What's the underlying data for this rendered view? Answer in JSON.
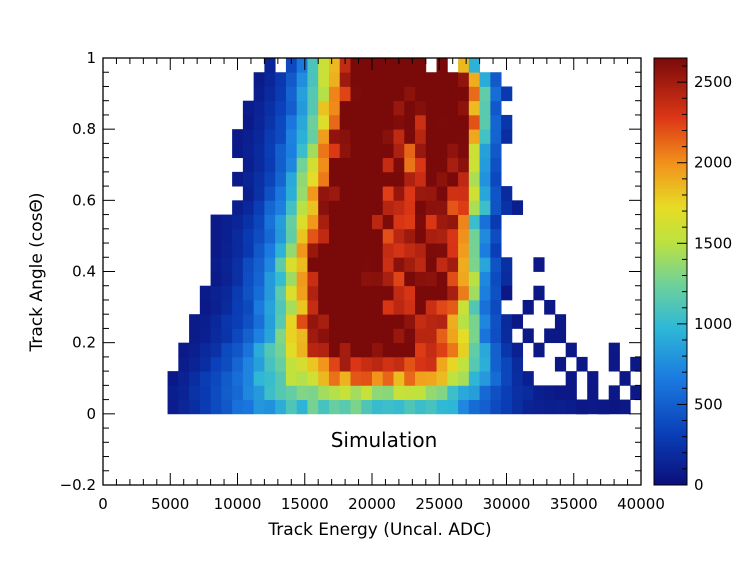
{
  "chart_data": {
    "type": "heatmap",
    "xlabel": "Track Energy (Uncal. ADC)",
    "ylabel": "Track Angle (cosΘ)",
    "annotation": "Simulation",
    "xlim": [
      0,
      40000
    ],
    "ylim": [
      -0.2,
      1
    ],
    "x_ticks": [
      0,
      5000,
      10000,
      15000,
      20000,
      25000,
      30000,
      35000,
      40000
    ],
    "x_tick_labels": [
      "0",
      "5000",
      "10000",
      "15000",
      "20000",
      "25000",
      "30000",
      "35000",
      "40000"
    ],
    "y_ticks": [
      -0.2,
      0,
      0.2,
      0.4,
      0.6,
      0.8,
      1
    ],
    "y_tick_labels": [
      "−0.2",
      "0",
      "0.2",
      "0.4",
      "0.6",
      "0.8",
      "1"
    ],
    "colorbar": {
      "range": [
        0,
        2650
      ],
      "ticks": [
        0,
        500,
        1000,
        1500,
        2000,
        2500
      ],
      "tick_labels": [
        "0",
        "500",
        "1000",
        "1500",
        "2000",
        "2500"
      ],
      "colormap": "turbo-like (dark blue → cyan → yellow → red → dark red)"
    },
    "bins": {
      "x_bin_width": 800,
      "y_bin_width": 0.04,
      "y_from": 0,
      "y_to": 1
    },
    "rows": [
      {
        "y_low": 0.0,
        "x_min": 4800,
        "x_max": 38000,
        "ridges": [
          [
            14000,
            650,
            4200
          ],
          [
            19000,
            650,
            3800
          ],
          [
            25000,
            700,
            3000
          ]
        ]
      },
      {
        "y_low": 0.04,
        "x_min": 4800,
        "x_max": 34000,
        "ridges": [
          [
            14500,
            800,
            4200
          ],
          [
            19200,
            850,
            3800
          ],
          [
            25000,
            900,
            3000
          ]
        ]
      },
      {
        "y_low": 0.08,
        "x_min": 5200,
        "x_max": 32000,
        "ridges": [
          [
            15000,
            1000,
            4000
          ],
          [
            19300,
            1100,
            3600
          ],
          [
            25000,
            1300,
            3000
          ]
        ]
      },
      {
        "y_low": 0.12,
        "x_min": 5600,
        "x_max": 31000,
        "ridges": [
          [
            15500,
            1150,
            3800
          ],
          [
            19300,
            1300,
            3400
          ],
          [
            24800,
            1700,
            2900
          ]
        ]
      },
      {
        "y_low": 0.16,
        "x_min": 6000,
        "x_max": 30500,
        "ridges": [
          [
            16000,
            1300,
            3700
          ],
          [
            19000,
            1450,
            3200
          ],
          [
            24600,
            1900,
            2800
          ]
        ]
      },
      {
        "y_low": 0.2,
        "x_min": 6400,
        "x_max": 30000,
        "ridges": [
          [
            16500,
            1400,
            3600
          ],
          [
            18800,
            1550,
            3000
          ],
          [
            24500,
            2050,
            2700
          ]
        ]
      },
      {
        "y_low": 0.24,
        "x_min": 6400,
        "x_max": 30000,
        "ridges": [
          [
            16800,
            1450,
            3500
          ],
          [
            18600,
            1600,
            2900
          ],
          [
            24600,
            2150,
            2600
          ]
        ]
      },
      {
        "y_low": 0.28,
        "x_min": 7200,
        "x_max": 29500,
        "ridges": [
          [
            17000,
            1500,
            3400
          ],
          [
            18500,
            1600,
            2800
          ],
          [
            24800,
            2250,
            2500
          ]
        ]
      },
      {
        "y_low": 0.32,
        "x_min": 7200,
        "x_max": 29500,
        "ridges": [
          [
            17100,
            1500,
            3400
          ],
          [
            18400,
            1600,
            2800
          ],
          [
            25000,
            2350,
            2500
          ]
        ]
      },
      {
        "y_low": 0.36,
        "x_min": 8000,
        "x_max": 30000,
        "ridges": [
          [
            17200,
            1550,
            3300
          ],
          [
            18300,
            1550,
            2800
          ],
          [
            25000,
            2400,
            2400
          ]
        ]
      },
      {
        "y_low": 0.4,
        "x_min": 8000,
        "x_max": 30000,
        "ridges": [
          [
            17300,
            1600,
            3300
          ],
          [
            18300,
            1550,
            2800
          ],
          [
            25000,
            2400,
            2400
          ]
        ]
      },
      {
        "y_low": 0.44,
        "x_min": 8000,
        "x_max": 29500,
        "ridges": [
          [
            17500,
            1600,
            3200
          ],
          [
            18400,
            1500,
            2800
          ],
          [
            25100,
            2350,
            2300
          ]
        ]
      },
      {
        "y_low": 0.48,
        "x_min": 8000,
        "x_max": 29500,
        "ridges": [
          [
            17700,
            1600,
            3200
          ],
          [
            18600,
            1450,
            2800
          ],
          [
            25200,
            2300,
            2300
          ]
        ]
      },
      {
        "y_low": 0.52,
        "x_min": 8000,
        "x_max": 29000,
        "ridges": [
          [
            17800,
            1650,
            3100
          ],
          [
            18800,
            1450,
            2800
          ],
          [
            25300,
            2300,
            2200
          ]
        ]
      },
      {
        "y_low": 0.56,
        "x_min": 9600,
        "x_max": 30500,
        "ridges": [
          [
            18000,
            1650,
            3100
          ],
          [
            19000,
            1450,
            2800
          ],
          [
            25400,
            2350,
            2200
          ]
        ]
      },
      {
        "y_low": 0.6,
        "x_min": 10400,
        "x_max": 30000,
        "ridges": [
          [
            18200,
            1700,
            3000
          ],
          [
            19200,
            1450,
            2800
          ],
          [
            25500,
            2400,
            2100
          ]
        ]
      },
      {
        "y_low": 0.64,
        "x_min": 9600,
        "x_max": 29500,
        "ridges": [
          [
            18400,
            1700,
            3000
          ],
          [
            19400,
            1450,
            2700
          ],
          [
            25600,
            2450,
            2100
          ]
        ]
      },
      {
        "y_low": 0.68,
        "x_min": 10400,
        "x_max": 29500,
        "ridges": [
          [
            18600,
            1700,
            3000
          ],
          [
            19600,
            1450,
            2700
          ],
          [
            25700,
            2500,
            2000
          ]
        ]
      },
      {
        "y_low": 0.72,
        "x_min": 9600,
        "x_max": 29500,
        "ridges": [
          [
            18800,
            1700,
            3000
          ],
          [
            19800,
            1450,
            2700
          ],
          [
            25800,
            2550,
            2000
          ]
        ]
      },
      {
        "y_low": 0.76,
        "x_min": 9600,
        "x_max": 30000,
        "ridges": [
          [
            19000,
            1700,
            3000
          ],
          [
            20000,
            1450,
            2700
          ],
          [
            25900,
            2600,
            2000
          ]
        ]
      },
      {
        "y_low": 0.8,
        "x_min": 10400,
        "x_max": 30000,
        "ridges": [
          [
            19200,
            1700,
            3000
          ],
          [
            20200,
            1450,
            2700
          ],
          [
            26000,
            2600,
            2000
          ]
        ]
      },
      {
        "y_low": 0.84,
        "x_min": 10400,
        "x_max": 29500,
        "ridges": [
          [
            19300,
            1700,
            3000
          ],
          [
            20400,
            1450,
            2700
          ],
          [
            26000,
            2650,
            2000
          ]
        ]
      },
      {
        "y_low": 0.88,
        "x_min": 11200,
        "x_max": 30000,
        "ridges": [
          [
            19400,
            1700,
            3000
          ],
          [
            20600,
            1450,
            2700
          ],
          [
            26000,
            2650,
            2000
          ]
        ]
      },
      {
        "y_low": 0.92,
        "x_min": 11200,
        "x_max": 29500,
        "ridges": [
          [
            19500,
            1750,
            3000
          ],
          [
            21000,
            1450,
            2700
          ],
          [
            25800,
            2600,
            2000
          ]
        ]
      },
      {
        "y_low": 0.96,
        "x_min": 12000,
        "x_max": 28000,
        "ridges": [
          [
            19600,
            2000,
            3000
          ],
          [
            21500,
            1700,
            2700
          ],
          [
            25500,
            2400,
            2000
          ]
        ]
      }
    ],
    "sparse_bins": [
      [
        29600,
        0.32
      ],
      [
        30400,
        0.24
      ],
      [
        31200,
        0.2
      ],
      [
        31200,
        0.28
      ],
      [
        32000,
        0.16
      ],
      [
        32000,
        0.32
      ],
      [
        32000,
        0.4
      ],
      [
        32800,
        0.2
      ],
      [
        32800,
        0.28
      ],
      [
        33600,
        0.12
      ],
      [
        33600,
        0.2
      ],
      [
        33600,
        0.24
      ],
      [
        34400,
        0.08
      ],
      [
        34400,
        0.04
      ],
      [
        34400,
        0.16
      ],
      [
        35200,
        0.12
      ],
      [
        35200,
        0.0
      ],
      [
        36000,
        0.08
      ],
      [
        36000,
        0.04
      ],
      [
        36800,
        0.0
      ],
      [
        37600,
        0.04
      ],
      [
        37600,
        0.12
      ],
      [
        37600,
        0.16
      ],
      [
        38400,
        0.0
      ],
      [
        38400,
        0.08
      ],
      [
        39200,
        0.04
      ],
      [
        39200,
        0.12
      ]
    ],
    "holes": [
      [
        7200,
        0.36
      ],
      [
        25600,
        0.96
      ],
      [
        24000,
        0.96
      ],
      [
        12800,
        0.96
      ]
    ]
  }
}
